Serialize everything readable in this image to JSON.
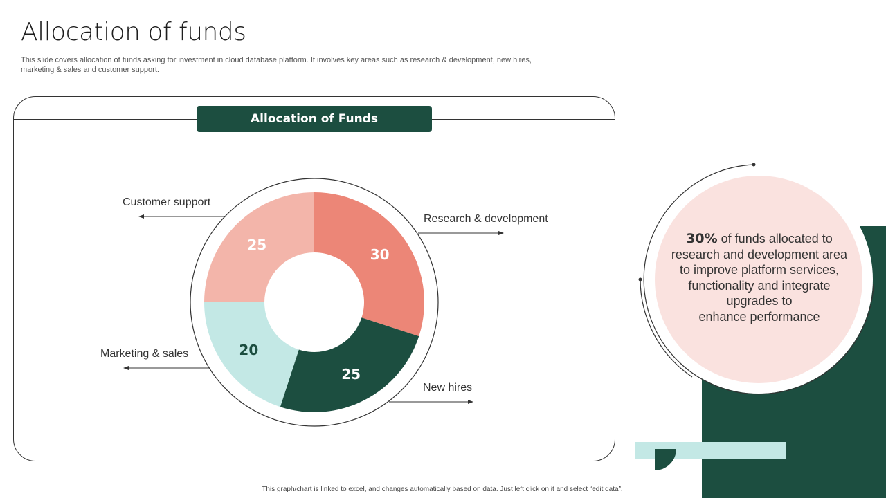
{
  "title": "Allocation of funds",
  "subtitle": "This slide covers allocation of funds asking for investment in cloud database platform. It involves key areas such as research & development, new hires, marketing & sales and customer support.",
  "panel_heading": "Allocation of Funds",
  "chart_data": {
    "type": "pie",
    "style": "donut",
    "title": "Allocation of Funds",
    "categories": [
      "Research & development",
      "New hires",
      "Marketing & sales",
      "Customer support"
    ],
    "values": [
      30,
      25,
      20,
      25
    ],
    "value_labels": [
      "30",
      "25",
      "20",
      "25"
    ],
    "colors": [
      "#ec8677",
      "#1c4e40",
      "#c3e8e5",
      "#f3b5aa"
    ],
    "label_colors": [
      "#ffffff",
      "#ffffff",
      "#1c4e40",
      "#ffffff"
    ],
    "legend": "none"
  },
  "callout": {
    "percent": "30%",
    "text_after_percent": " of funds allocated to",
    "lines": [
      "research and development area",
      "to improve platform services,",
      "functionality and integrate",
      "upgrades to",
      "enhance performance"
    ]
  },
  "colors": {
    "dark_green": "#1c4e40",
    "light_teal": "#c3e8e5",
    "salmon": "#ec8677",
    "light_salmon": "#f3b5aa",
    "pink": "#fae2df"
  },
  "footnote": "This graph/chart is linked to excel, and changes automatically based on data. Just left click on it and select “edit data”."
}
